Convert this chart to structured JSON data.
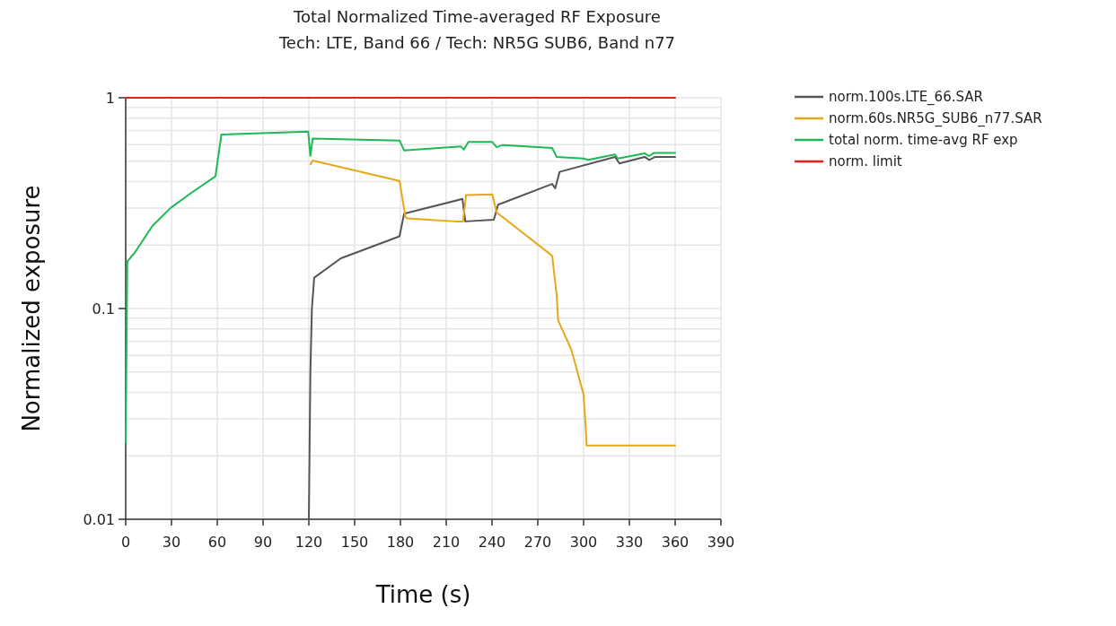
{
  "chart_data": {
    "type": "line",
    "title": "Total Normalized Time-averaged RF Exposure",
    "subtitle": "Tech: LTE, Band 66 / Tech: NR5G SUB6, Band n77",
    "xlabel": "Time (s)",
    "ylabel": "Normalized exposure",
    "log": "y",
    "grid": true,
    "legend": "top right",
    "xlim": [
      0,
      390
    ],
    "xticks": [
      0,
      30,
      60,
      90,
      120,
      150,
      180,
      210,
      240,
      270,
      300,
      330,
      360,
      390
    ],
    "ylim": [
      0.01,
      1
    ],
    "yticks": [
      0.01,
      {
        "value": 0.02,
        "label": null
      },
      {
        "value": 0.03,
        "label": null
      },
      {
        "value": 0.04,
        "label": null
      },
      {
        "value": 0.05,
        "label": null
      },
      {
        "value": 0.06,
        "label": null
      },
      {
        "value": 0.07,
        "label": null
      },
      {
        "value": 0.08,
        "label": null
      },
      {
        "value": 0.09,
        "label": null
      },
      0.1,
      {
        "value": 0.2,
        "label": null
      },
      {
        "value": 0.3,
        "label": null
      },
      {
        "value": 0.4,
        "label": null
      },
      {
        "value": 0.5,
        "label": null
      },
      {
        "value": 0.6,
        "label": null
      },
      {
        "value": 0.7,
        "label": null
      },
      {
        "value": 0.8,
        "label": null
      },
      {
        "value": 0.9,
        "label": null
      },
      1
    ],
    "series": [
      {
        "name": "norm.100s.LTE_66.SAR",
        "color": "#555555",
        "x": [
          120,
          121,
          122,
          123.5,
          141,
          179.4,
          182.4,
          220.6,
          222.5,
          241.2,
          244,
          279.4,
          281.4,
          284.3,
          320.6,
          323.5,
          340,
          343,
          347,
          360
        ],
        "values": [
          0.01,
          0.05,
          0.1,
          0.14,
          0.173,
          0.22,
          0.282,
          0.331,
          0.259,
          0.264,
          0.311,
          0.39,
          0.372,
          0.445,
          0.524,
          0.488,
          0.524,
          0.507,
          0.524,
          0.524
        ]
      },
      {
        "name": "norm.60s.NR5G_SUB6_n77.SAR",
        "color": "#e6a817",
        "x": [
          121.2,
          122.5,
          179.4,
          183.3,
          184.3,
          215.7,
          221,
          223,
          240.2,
          243,
          279.4,
          282.4,
          283.3,
          292,
          300,
          301.4,
          302,
          360
        ],
        "values": [
          0.483,
          0.504,
          0.403,
          0.272,
          0.268,
          0.259,
          0.259,
          0.345,
          0.348,
          0.286,
          0.178,
          0.115,
          0.088,
          0.0637,
          0.039,
          0.0272,
          0.0224,
          0.0224
        ]
      },
      {
        "name": "total norm. time-avg RF exp",
        "color": "#1db954",
        "x": [
          0,
          1,
          5.9,
          17.6,
          29.4,
          43,
          58.8,
          62.7,
          119.6,
          121,
          122.5,
          179.4,
          182.4,
          219.6,
          221.6,
          224.5,
          240.2,
          243,
          247,
          279.4,
          282.4,
          300,
          303,
          320.6,
          322.5,
          340,
          342.8,
          346,
          360
        ],
        "values": [
          0.023,
          0.167,
          0.184,
          0.247,
          0.3,
          0.354,
          0.424,
          0.669,
          0.69,
          0.53,
          0.641,
          0.627,
          0.563,
          0.587,
          0.568,
          0.617,
          0.617,
          0.583,
          0.597,
          0.578,
          0.524,
          0.515,
          0.507,
          0.538,
          0.515,
          0.545,
          0.529,
          0.547,
          0.547
        ]
      },
      {
        "name": "norm. limit",
        "color": "#e8211e",
        "x": [
          0,
          360
        ],
        "values": [
          1,
          1
        ]
      }
    ]
  }
}
